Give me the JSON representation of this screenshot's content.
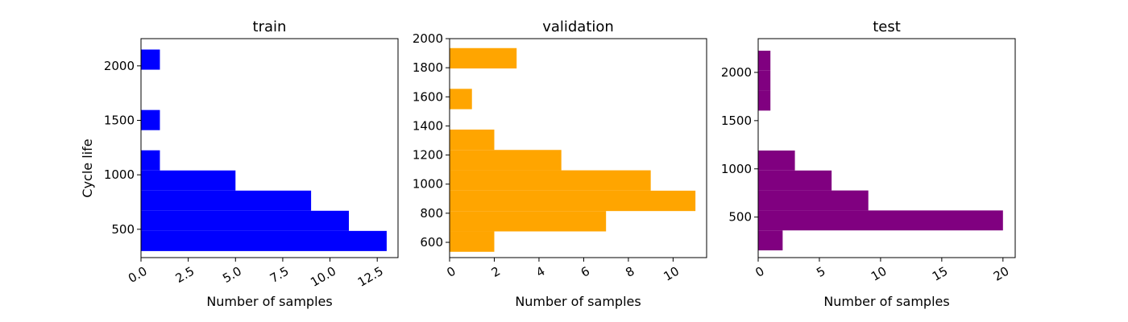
{
  "chart_data": [
    {
      "type": "bar",
      "orientation": "horizontal",
      "title": "train",
      "xlabel": "Number of samples",
      "ylabel": "Cycle life",
      "color": "#0000ff",
      "xlim": [
        0,
        13.6
      ],
      "ylim": [
        240,
        2250
      ],
      "xticks": [
        0,
        2.5,
        5,
        7.5,
        10,
        12.5
      ],
      "xticklabels": [
        "0.0",
        "2.5",
        "5.0",
        "7.5",
        "10.0",
        "12.5"
      ],
      "yticks": [
        500,
        1000,
        1500,
        2000
      ],
      "yticklabels": [
        "500",
        "1000",
        "1500",
        "2000"
      ],
      "bins": [
        {
          "y0": 300,
          "y1": 485,
          "count": 13
        },
        {
          "y0": 485,
          "y1": 670,
          "count": 11
        },
        {
          "y0": 670,
          "y1": 855,
          "count": 9
        },
        {
          "y0": 855,
          "y1": 1040,
          "count": 5
        },
        {
          "y0": 1040,
          "y1": 1225,
          "count": 1
        },
        {
          "y0": 1225,
          "y1": 1410,
          "count": 0
        },
        {
          "y0": 1410,
          "y1": 1595,
          "count": 1
        },
        {
          "y0": 1595,
          "y1": 1780,
          "count": 0
        },
        {
          "y0": 1780,
          "y1": 1965,
          "count": 0
        },
        {
          "y0": 1965,
          "y1": 2150,
          "count": 1
        }
      ]
    },
    {
      "type": "bar",
      "orientation": "horizontal",
      "title": "validation",
      "xlabel": "Number of samples",
      "ylabel": "",
      "color": "#ffa500",
      "xlim": [
        0,
        11.5
      ],
      "ylim": [
        495,
        2000
      ],
      "xticks": [
        0,
        2,
        4,
        6,
        8,
        10
      ],
      "xticklabels": [
        "0",
        "2",
        "4",
        "6",
        "8",
        "10"
      ],
      "yticks": [
        600,
        800,
        1000,
        1200,
        1400,
        1600,
        1800,
        2000
      ],
      "yticklabels": [
        "600",
        "800",
        "1000",
        "1200",
        "1400",
        "1600",
        "1800",
        "2000"
      ],
      "bins": [
        {
          "y0": 535,
          "y1": 675,
          "count": 2
        },
        {
          "y0": 675,
          "y1": 815,
          "count": 7
        },
        {
          "y0": 815,
          "y1": 955,
          "count": 11
        },
        {
          "y0": 955,
          "y1": 1095,
          "count": 9
        },
        {
          "y0": 1095,
          "y1": 1235,
          "count": 5
        },
        {
          "y0": 1235,
          "y1": 1375,
          "count": 2
        },
        {
          "y0": 1375,
          "y1": 1515,
          "count": 0
        },
        {
          "y0": 1515,
          "y1": 1655,
          "count": 1
        },
        {
          "y0": 1655,
          "y1": 1795,
          "count": 0
        },
        {
          "y0": 1795,
          "y1": 1935,
          "count": 3
        }
      ]
    },
    {
      "type": "bar",
      "orientation": "horizontal",
      "title": "test",
      "xlabel": "Number of samples",
      "ylabel": "",
      "color": "#800080",
      "xlim": [
        0,
        21
      ],
      "ylim": [
        80,
        2350
      ],
      "xticks": [
        0,
        5,
        10,
        15,
        20
      ],
      "xticklabels": [
        "0",
        "5",
        "10",
        "15",
        "20"
      ],
      "yticks": [
        500,
        1000,
        1500,
        2000
      ],
      "yticklabels": [
        "500",
        "1000",
        "1500",
        "2000"
      ],
      "bins": [
        {
          "y0": 155,
          "y1": 362,
          "count": 2
        },
        {
          "y0": 362,
          "y1": 569,
          "count": 20
        },
        {
          "y0": 569,
          "y1": 776,
          "count": 9
        },
        {
          "y0": 776,
          "y1": 983,
          "count": 6
        },
        {
          "y0": 983,
          "y1": 1190,
          "count": 3
        },
        {
          "y0": 1190,
          "y1": 1397,
          "count": 0
        },
        {
          "y0": 1397,
          "y1": 1604,
          "count": 0
        },
        {
          "y0": 1604,
          "y1": 1811,
          "count": 1
        },
        {
          "y0": 1811,
          "y1": 2018,
          "count": 1
        },
        {
          "y0": 2018,
          "y1": 2225,
          "count": 1
        }
      ]
    }
  ]
}
